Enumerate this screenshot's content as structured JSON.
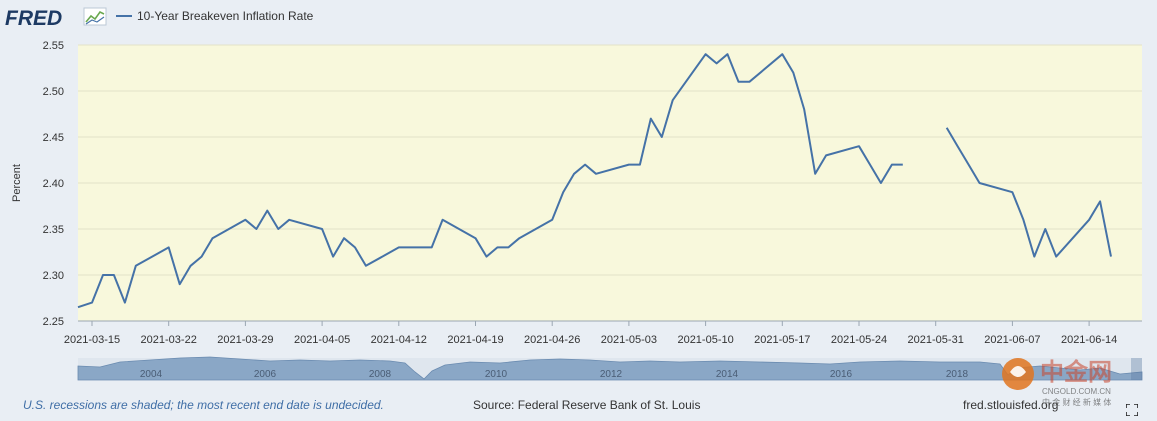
{
  "logo_text": "FRED",
  "chart_data": {
    "type": "line",
    "title": "",
    "ylabel": "Percent",
    "xlabel": "",
    "ylim": [
      2.25,
      2.55
    ],
    "yticks": [
      "2.25",
      "2.30",
      "2.35",
      "2.40",
      "2.45",
      "2.50",
      "2.55"
    ],
    "xticks": [
      "2021-03-15",
      "2021-03-22",
      "2021-03-29",
      "2021-04-05",
      "2021-04-12",
      "2021-04-19",
      "2021-04-26",
      "2021-05-03",
      "2021-05-10",
      "2021-05-17",
      "2021-05-24",
      "2021-05-31",
      "2021-06-07",
      "2021-06-14"
    ],
    "legend": "top-left",
    "grid": true,
    "series": [
      {
        "name": "10-Year Breakeven Inflation Rate",
        "color": "#4572a7",
        "x": [
          "2021-03-12",
          "2021-03-15",
          "2021-03-16",
          "2021-03-17",
          "2021-03-18",
          "2021-03-19",
          "2021-03-22",
          "2021-03-23",
          "2021-03-24",
          "2021-03-25",
          "2021-03-26",
          "2021-03-29",
          "2021-03-30",
          "2021-03-31",
          "2021-04-01",
          "2021-04-02",
          "2021-04-05",
          "2021-04-06",
          "2021-04-07",
          "2021-04-08",
          "2021-04-09",
          "2021-04-12",
          "2021-04-13",
          "2021-04-14",
          "2021-04-15",
          "2021-04-16",
          "2021-04-19",
          "2021-04-20",
          "2021-04-21",
          "2021-04-22",
          "2021-04-23",
          "2021-04-26",
          "2021-04-27",
          "2021-04-28",
          "2021-04-29",
          "2021-04-30",
          "2021-05-03",
          "2021-05-04",
          "2021-05-05",
          "2021-05-06",
          "2021-05-07",
          "2021-05-10",
          "2021-05-11",
          "2021-05-12",
          "2021-05-13",
          "2021-05-14",
          "2021-05-17",
          "2021-05-18",
          "2021-05-19",
          "2021-05-20",
          "2021-05-21",
          "2021-05-24",
          "2021-05-25",
          "2021-05-26",
          "2021-05-27",
          "2021-05-28",
          "2021-05-31",
          "2021-06-01",
          "2021-06-02",
          "2021-06-03",
          "2021-06-04",
          "2021-06-07",
          "2021-06-08",
          "2021-06-09",
          "2021-06-10",
          "2021-06-11",
          "2021-06-14",
          "2021-06-15",
          "2021-06-16"
        ],
        "values": [
          2.265,
          2.27,
          2.3,
          2.3,
          2.27,
          2.31,
          2.33,
          2.29,
          2.31,
          2.32,
          2.34,
          2.36,
          2.35,
          2.37,
          2.35,
          2.36,
          2.35,
          2.32,
          2.34,
          2.33,
          2.31,
          2.33,
          2.33,
          2.33,
          2.33,
          2.36,
          2.34,
          2.32,
          2.33,
          2.33,
          2.34,
          2.36,
          2.39,
          2.41,
          2.42,
          2.41,
          2.42,
          2.42,
          2.47,
          2.45,
          2.49,
          2.54,
          2.53,
          2.54,
          2.51,
          2.51,
          2.54,
          2.52,
          2.48,
          2.41,
          2.43,
          2.44,
          2.42,
          2.4,
          2.42,
          2.42,
          null,
          2.46,
          2.44,
          2.42,
          2.4,
          2.39,
          2.36,
          2.32,
          2.35,
          2.32,
          2.36,
          2.38,
          2.32
        ]
      }
    ],
    "navigator": {
      "labels": [
        "2004",
        "2006",
        "2008",
        "2010",
        "2012",
        "2014",
        "2016",
        "2018"
      ]
    }
  },
  "footer": {
    "note": "U.S. recessions are shaded; the most recent end date is undecided.",
    "source": "Source: Federal Reserve Bank of St. Louis",
    "url": "fred.stlouisfed.org"
  },
  "watermark": {
    "brand": "中金网",
    "domain": "CNGOLD.COM.CN",
    "slogan": "中 金 财 经 新 媒 体"
  }
}
